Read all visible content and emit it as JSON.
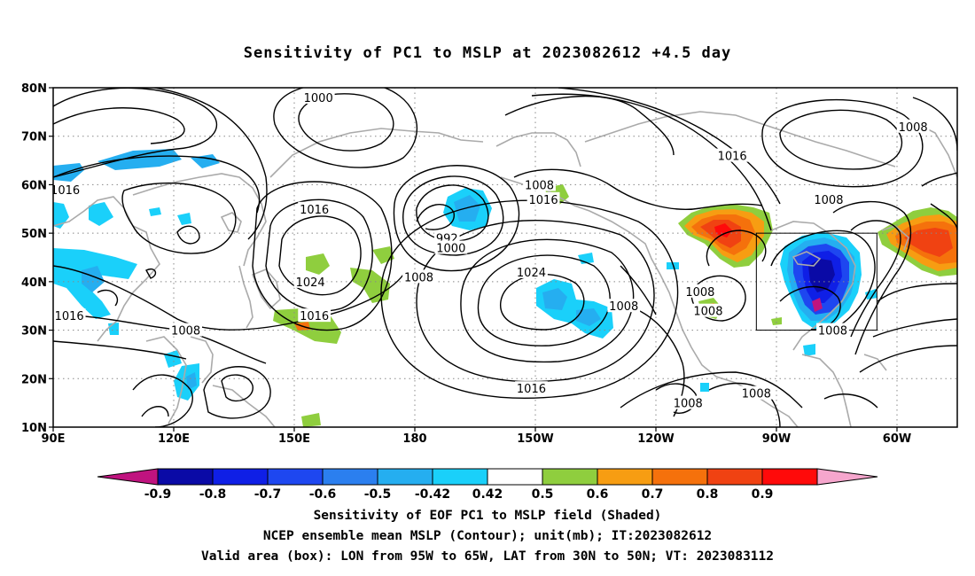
{
  "title": "Sensitivity of PC1 to MSLP at 2023082612 +4.5 day",
  "map": {
    "lat_labels": [
      "80N",
      "70N",
      "60N",
      "50N",
      "40N",
      "30N",
      "20N",
      "10N"
    ],
    "lon_labels": [
      "90E",
      "120E",
      "150E",
      "180",
      "150W",
      "120W",
      "90W",
      "60W"
    ],
    "lon_range": [
      90,
      315
    ],
    "lat_range": [
      10,
      80
    ],
    "valid_box": {
      "lon_from": "95W",
      "lon_to": "65W",
      "lat_from": "30N",
      "lat_to": "50N"
    },
    "contour_labels": [
      {
        "text": "1000",
        "lon": 156,
        "lat": 78
      },
      {
        "text": "1016",
        "lon": 93,
        "lat": 59
      },
      {
        "text": "1016",
        "lon": 155,
        "lat": 55
      },
      {
        "text": "992",
        "lon": 188,
        "lat": 49
      },
      {
        "text": "1000",
        "lon": 189,
        "lat": 47
      },
      {
        "text": "1024",
        "lon": 154,
        "lat": 40
      },
      {
        "text": "1008",
        "lon": 181,
        "lat": 41
      },
      {
        "text": "1016",
        "lon": 94,
        "lat": 33
      },
      {
        "text": "1016",
        "lon": 155,
        "lat": 33
      },
      {
        "text": "1008",
        "lon": 123,
        "lat": 30
      },
      {
        "text": "1008",
        "lon": 211,
        "lat": 60
      },
      {
        "text": "1016",
        "lon": 212,
        "lat": 57
      },
      {
        "text": "1024",
        "lon": 209,
        "lat": 42
      },
      {
        "text": "1008",
        "lon": 232,
        "lat": 35
      },
      {
        "text": "1016",
        "lon": 209,
        "lat": 18
      },
      {
        "text": "1016",
        "lon": 259,
        "lat": 66
      },
      {
        "text": "1008",
        "lon": 251,
        "lat": 38
      },
      {
        "text": "1008",
        "lon": 253,
        "lat": 34
      },
      {
        "text": "1008",
        "lon": 283,
        "lat": 57
      },
      {
        "text": "1008",
        "lon": 304,
        "lat": 72
      },
      {
        "text": "1008",
        "lon": 284,
        "lat": 30
      },
      {
        "text": "1008",
        "lon": 248,
        "lat": 15
      },
      {
        "text": "1008",
        "lon": 265,
        "lat": 17
      }
    ]
  },
  "colorbar": {
    "tick_labels": [
      "-0.9",
      "-0.8",
      "-0.7",
      "-0.6",
      "-0.5",
      "-0.42",
      "0.42",
      "0.5",
      "0.6",
      "0.7",
      "0.8",
      "0.9"
    ],
    "colors": [
      "#c0137f",
      "#0a0aa6",
      "#0f1fe6",
      "#1e47f0",
      "#2b7fef",
      "#25aef0",
      "#1ad0fa",
      "#ffffff",
      "#8fce3e",
      "#f79d12",
      "#f5710c",
      "#f04212",
      "#ff0a0a",
      "#f6a6cd"
    ]
  },
  "shading_colors": {
    "blue_light": "#1ad0fa",
    "blue_mid": "#25aef0",
    "blue_strong": "#1e47f0",
    "blue_dark": "#0a0aa6",
    "green": "#8fce3e",
    "orange": "#f79d12",
    "red_orange": "#f04212",
    "red": "#ff0a0a",
    "pink": "#f6a6cd",
    "magenta": "#c0137f"
  },
  "captions": [
    "Sensitivity of EOF PC1 to MSLP field (Shaded)",
    "NCEP ensemble mean MSLP (Contour); unit(mb); IT:2023082612",
    "Valid area (box): LON from 95W to 65W, LAT from 30N to 50N; VT: 2023083112"
  ]
}
